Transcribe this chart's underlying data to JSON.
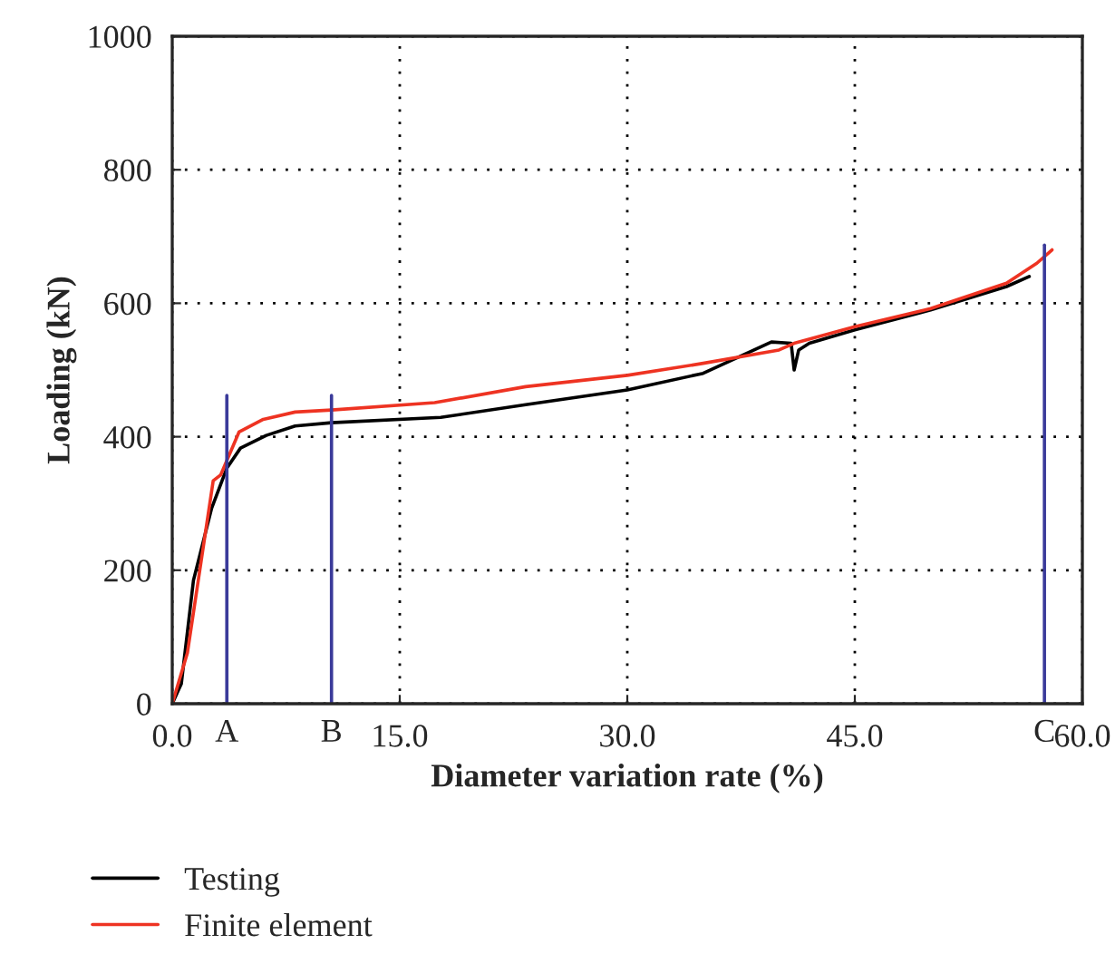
{
  "chart_data": {
    "type": "line",
    "xlabel": "Diameter variation rate (%)",
    "ylabel": "Loading (kN)",
    "xlim": [
      0,
      60
    ],
    "ylim": [
      0,
      1000
    ],
    "xticks": [
      {
        "value": 0,
        "label": "0.0"
      },
      {
        "value": 15,
        "label": "15.0"
      },
      {
        "value": 30,
        "label": "30.0"
      },
      {
        "value": 45,
        "label": "45.0"
      },
      {
        "value": 60,
        "label": "60.0"
      }
    ],
    "yticks": [
      0,
      200,
      400,
      600,
      800,
      1000
    ],
    "grid": true,
    "legend": "bottom",
    "series": [
      {
        "name": "Testing",
        "color": "#000000",
        "x": [
          0,
          0.6,
          1.4,
          2.6,
          3.6,
          4.5,
          6.2,
          8.1,
          10.5,
          17.7,
          23.3,
          30,
          35,
          39.5,
          40.8,
          41,
          41.3,
          42,
          45,
          50,
          55,
          56.5
        ],
        "values": [
          0,
          30,
          185,
          293,
          353,
          383,
          402,
          416,
          421,
          429,
          448,
          470,
          495,
          542,
          540,
          500,
          530,
          540,
          560,
          590,
          625,
          640
        ]
      },
      {
        "name": "Finite element",
        "color": "#ee3322",
        "x": [
          0,
          1,
          2.7,
          3.2,
          4.4,
          6,
          8.1,
          10.5,
          17.3,
          23.3,
          30,
          35,
          40,
          41,
          45,
          50,
          55,
          57,
          58
        ],
        "values": [
          0,
          76,
          334,
          343,
          407,
          426,
          437,
          440,
          451,
          475,
          492,
          510,
          530,
          540,
          565,
          592,
          630,
          660,
          680
        ]
      },
      {
        "color": "#3a3a9a",
        "x": [
          3.6,
          3.6
        ],
        "values": [
          0,
          462
        ]
      },
      {
        "color": "#3a3a9a",
        "x": [
          10.5,
          10.5
        ],
        "values": [
          0,
          462
        ]
      },
      {
        "color": "#3a3a9a",
        "x": [
          57.5,
          57.5
        ],
        "values": [
          0,
          687
        ]
      }
    ],
    "annotations": [
      {
        "text": "A",
        "x": 3.6,
        "y": 0
      },
      {
        "text": "B",
        "x": 10.5,
        "y": 0
      },
      {
        "text": "C",
        "x": 57.5,
        "y": 0
      }
    ]
  }
}
